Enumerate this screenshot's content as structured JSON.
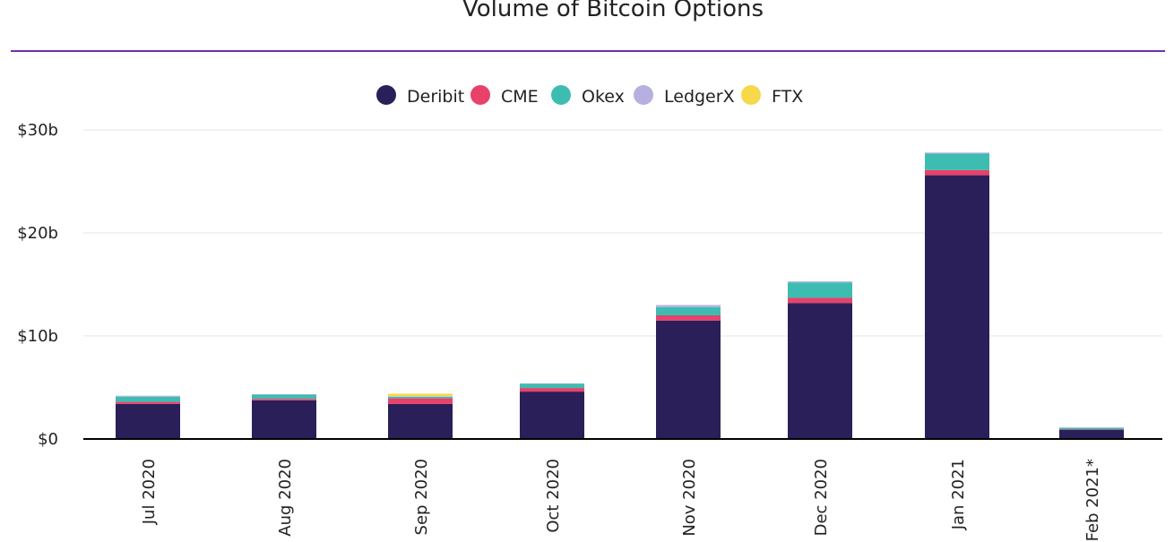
{
  "chart_data": {
    "type": "bar",
    "stacked": true,
    "title": "Volume of Bitcoin Options",
    "xlabel": "",
    "ylabel": "",
    "ylim": [
      0,
      30
    ],
    "y_ticks": [
      {
        "value": 0,
        "label": "$0"
      },
      {
        "value": 10,
        "label": "$10b"
      },
      {
        "value": 20,
        "label": "$20b"
      },
      {
        "value": 30,
        "label": "$30b"
      }
    ],
    "grid": true,
    "legend_position": "top-center",
    "categories": [
      "Jul 2020",
      "Aug 2020",
      "Sep 2020",
      "Oct 2020",
      "Nov 2020",
      "Dec 2020",
      "Jan 2021",
      "Feb 2021*"
    ],
    "series": [
      {
        "name": "Deribit",
        "color": "#2b1f5a",
        "values": [
          3.4,
          3.75,
          3.4,
          4.6,
          11.5,
          13.2,
          25.6,
          0.9
        ]
      },
      {
        "name": "CME",
        "color": "#e8416a",
        "values": [
          0.2,
          0.15,
          0.55,
          0.35,
          0.5,
          0.5,
          0.5,
          0.05
        ]
      },
      {
        "name": "Okex",
        "color": "#3dbdb1",
        "values": [
          0.5,
          0.4,
          0.15,
          0.4,
          0.8,
          1.5,
          1.6,
          0.15
        ]
      },
      {
        "name": "LedgerX",
        "color": "#b6b0e0",
        "values": [
          0.1,
          0.05,
          0.05,
          0.05,
          0.2,
          0.1,
          0.1,
          0.0
        ]
      },
      {
        "name": "FTX",
        "color": "#f6d94a",
        "values": [
          0.0,
          0.0,
          0.25,
          0.0,
          0.0,
          0.0,
          0.0,
          0.0
        ]
      }
    ]
  },
  "colors": {
    "accent_line": "#6f2fb0",
    "axis": "#000000",
    "grid": "#e6e6e6"
  }
}
